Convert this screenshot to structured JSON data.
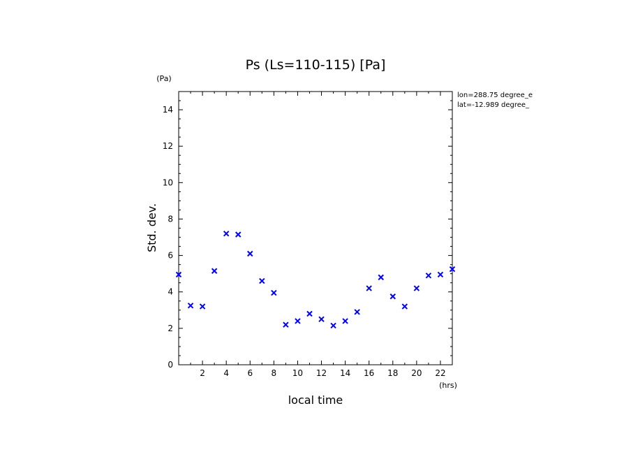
{
  "chart_data": {
    "type": "scatter",
    "title": "Ps (Ls=110-115) [Pa]",
    "xlabel": "local time",
    "ylabel": "Std. dev.",
    "xunit": "(hrs)",
    "yunit": "(Pa)",
    "xlim": [
      0,
      23
    ],
    "ylim": [
      0,
      15
    ],
    "xticks": [
      2,
      4,
      6,
      8,
      10,
      12,
      14,
      16,
      18,
      20,
      22
    ],
    "yticks": [
      0,
      2,
      4,
      6,
      8,
      10,
      12,
      14
    ],
    "marker": "x",
    "color": "#0000ff",
    "grid": false,
    "annotations": [
      "lon=288.75 degree_e",
      "lat=-12.989 degree_"
    ],
    "series": [
      {
        "x": [
          0,
          1,
          2,
          3,
          4,
          5,
          6,
          7,
          8,
          9,
          10,
          11,
          12,
          13,
          14,
          15,
          16,
          17,
          18,
          19,
          20,
          21,
          22,
          23
        ],
        "y": [
          4.95,
          3.25,
          3.2,
          5.15,
          7.2,
          7.15,
          6.1,
          4.6,
          3.95,
          2.2,
          2.4,
          2.8,
          2.5,
          2.15,
          2.4,
          2.9,
          4.2,
          4.8,
          3.75,
          3.2,
          4.2,
          4.9,
          4.95,
          5.25
        ]
      }
    ]
  }
}
